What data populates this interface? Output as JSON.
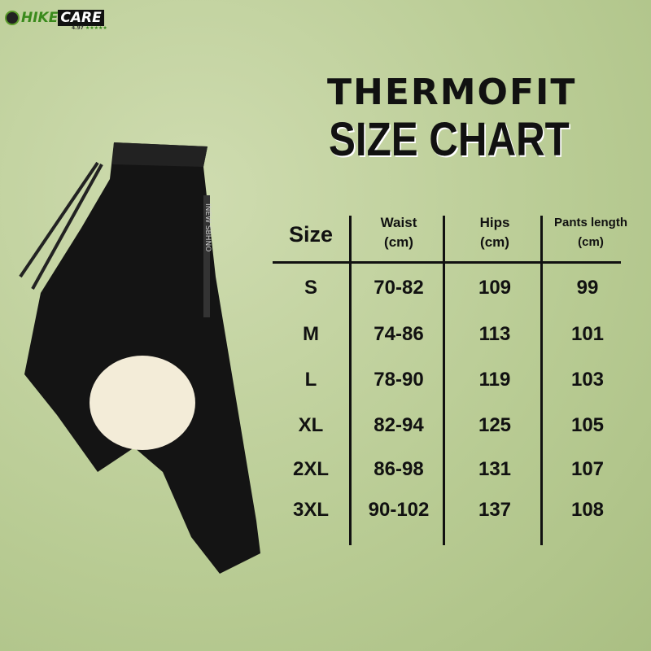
{
  "logo": {
    "brand_a": "HIKE",
    "brand_b": "CARE",
    "rating": "4.97",
    "stars": "★★★★★"
  },
  "title_line1": "THERMOFIT",
  "title_line2": "SIZE CHART",
  "table": {
    "headers": [
      {
        "l1": "Size",
        "l2": ""
      },
      {
        "l1": "Waist",
        "l2": "(cm)"
      },
      {
        "l1": "Hips",
        "l2": "(cm)"
      },
      {
        "l1": "Pants length",
        "l2": "(cm)"
      }
    ],
    "rows": [
      [
        "S",
        "70-82",
        "109",
        "99"
      ],
      [
        "M",
        "74-86",
        "113",
        "101"
      ],
      [
        "L",
        "78-90",
        "119",
        "103"
      ],
      [
        "XL",
        "82-94",
        "125",
        "105"
      ],
      [
        "2XL",
        "86-98",
        "131",
        "107"
      ],
      [
        "3XL",
        "90-102",
        "137",
        "108"
      ]
    ]
  },
  "product_label": "INEW SBHNO"
}
